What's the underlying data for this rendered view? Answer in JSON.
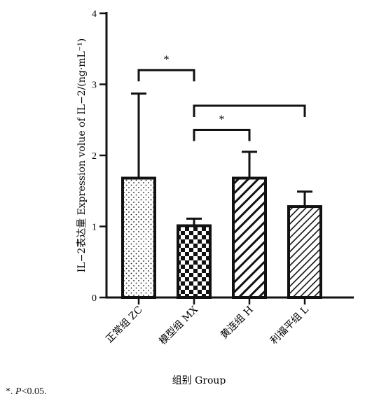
{
  "chart_data": {
    "type": "bar",
    "categories": [
      "正常组 ZC",
      "模型组 MX",
      "黄连组 H",
      "利福平组 L"
    ],
    "values": [
      1.68,
      1.01,
      1.68,
      1.28
    ],
    "error_upper": [
      2.87,
      1.11,
      2.05,
      1.49
    ],
    "patterns": [
      "dots",
      "checker",
      "hatch-wide",
      "hatch-dense"
    ],
    "ylabel": "IL−2表达量 Expression volue of IL−2/(ng·mL⁻¹)",
    "xlabel": "组别 Group",
    "ylim": [
      0,
      4
    ],
    "yticks": [
      0,
      1,
      2,
      3,
      4
    ],
    "significance": [
      {
        "from": 0,
        "to": 1,
        "label": "*",
        "level": 3.2
      },
      {
        "from": 1,
        "to": 2,
        "label": "*",
        "level": 2.36
      },
      {
        "from": 1,
        "to": 3,
        "label": "",
        "level": 2.7
      }
    ]
  },
  "footnote": {
    "star": "*",
    "sep": ". ",
    "p": "P",
    "rest": "<0.05."
  }
}
